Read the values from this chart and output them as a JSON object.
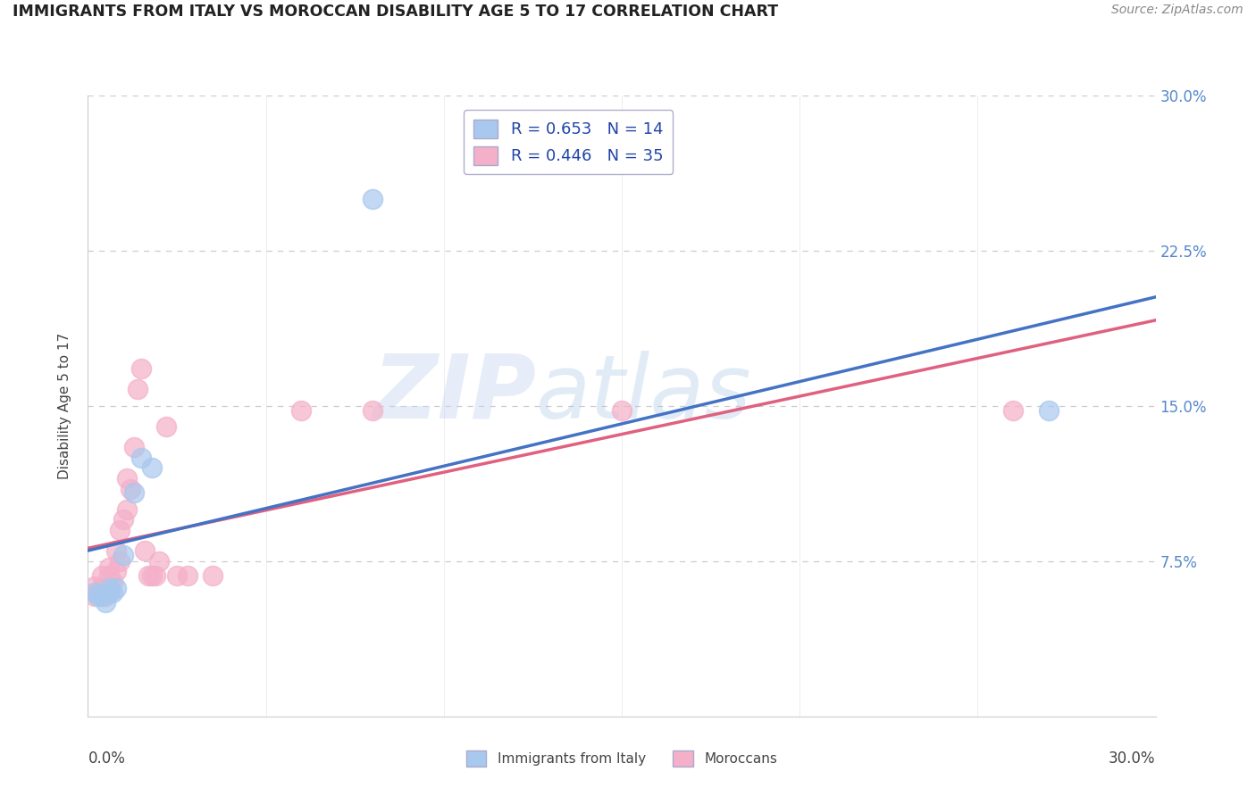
{
  "title": "IMMIGRANTS FROM ITALY VS MOROCCAN DISABILITY AGE 5 TO 17 CORRELATION CHART",
  "source": "Source: ZipAtlas.com",
  "ylabel": "Disability Age 5 to 17",
  "xlim": [
    0.0,
    0.3
  ],
  "ylim": [
    0.0,
    0.3
  ],
  "y_ticks": [
    0.075,
    0.15,
    0.225,
    0.3
  ],
  "y_tick_labels": [
    "7.5%",
    "15.0%",
    "22.5%",
    "30.0%"
  ],
  "x_ticks": [
    0.0,
    0.05,
    0.1,
    0.15,
    0.2,
    0.25,
    0.3
  ],
  "italy_color": "#a8c8ee",
  "italy_color_fill": "#a8c8ee",
  "italy_color_line": "#4472c4",
  "morocco_color": "#f4b0c8",
  "morocco_color_fill": "#f4b0c8",
  "morocco_color_line": "#e06080",
  "italy_R": 0.653,
  "italy_N": 14,
  "morocco_R": 0.446,
  "morocco_N": 35,
  "watermark_zip": "ZIP",
  "watermark_atlas": "atlas",
  "italy_points": [
    [
      0.002,
      0.06
    ],
    [
      0.003,
      0.058
    ],
    [
      0.004,
      0.058
    ],
    [
      0.005,
      0.055
    ],
    [
      0.006,
      0.06
    ],
    [
      0.006,
      0.062
    ],
    [
      0.007,
      0.06
    ],
    [
      0.008,
      0.062
    ],
    [
      0.01,
      0.078
    ],
    [
      0.013,
      0.108
    ],
    [
      0.015,
      0.125
    ],
    [
      0.018,
      0.12
    ],
    [
      0.08,
      0.25
    ],
    [
      0.27,
      0.148
    ]
  ],
  "morocco_points": [
    [
      0.002,
      0.058
    ],
    [
      0.002,
      0.063
    ],
    [
      0.003,
      0.06
    ],
    [
      0.004,
      0.062
    ],
    [
      0.004,
      0.068
    ],
    [
      0.005,
      0.058
    ],
    [
      0.005,
      0.062
    ],
    [
      0.006,
      0.06
    ],
    [
      0.006,
      0.068
    ],
    [
      0.006,
      0.072
    ],
    [
      0.007,
      0.065
    ],
    [
      0.008,
      0.07
    ],
    [
      0.008,
      0.08
    ],
    [
      0.009,
      0.075
    ],
    [
      0.009,
      0.09
    ],
    [
      0.01,
      0.095
    ],
    [
      0.011,
      0.1
    ],
    [
      0.011,
      0.115
    ],
    [
      0.012,
      0.11
    ],
    [
      0.013,
      0.13
    ],
    [
      0.014,
      0.158
    ],
    [
      0.015,
      0.168
    ],
    [
      0.016,
      0.08
    ],
    [
      0.017,
      0.068
    ],
    [
      0.018,
      0.068
    ],
    [
      0.019,
      0.068
    ],
    [
      0.02,
      0.075
    ],
    [
      0.022,
      0.14
    ],
    [
      0.025,
      0.068
    ],
    [
      0.028,
      0.068
    ],
    [
      0.035,
      0.068
    ],
    [
      0.06,
      0.148
    ],
    [
      0.08,
      0.148
    ],
    [
      0.15,
      0.148
    ],
    [
      0.26,
      0.148
    ]
  ],
  "background_color": "#ffffff",
  "grid_color": "#cccccc",
  "grid_dash": [
    4,
    4
  ]
}
